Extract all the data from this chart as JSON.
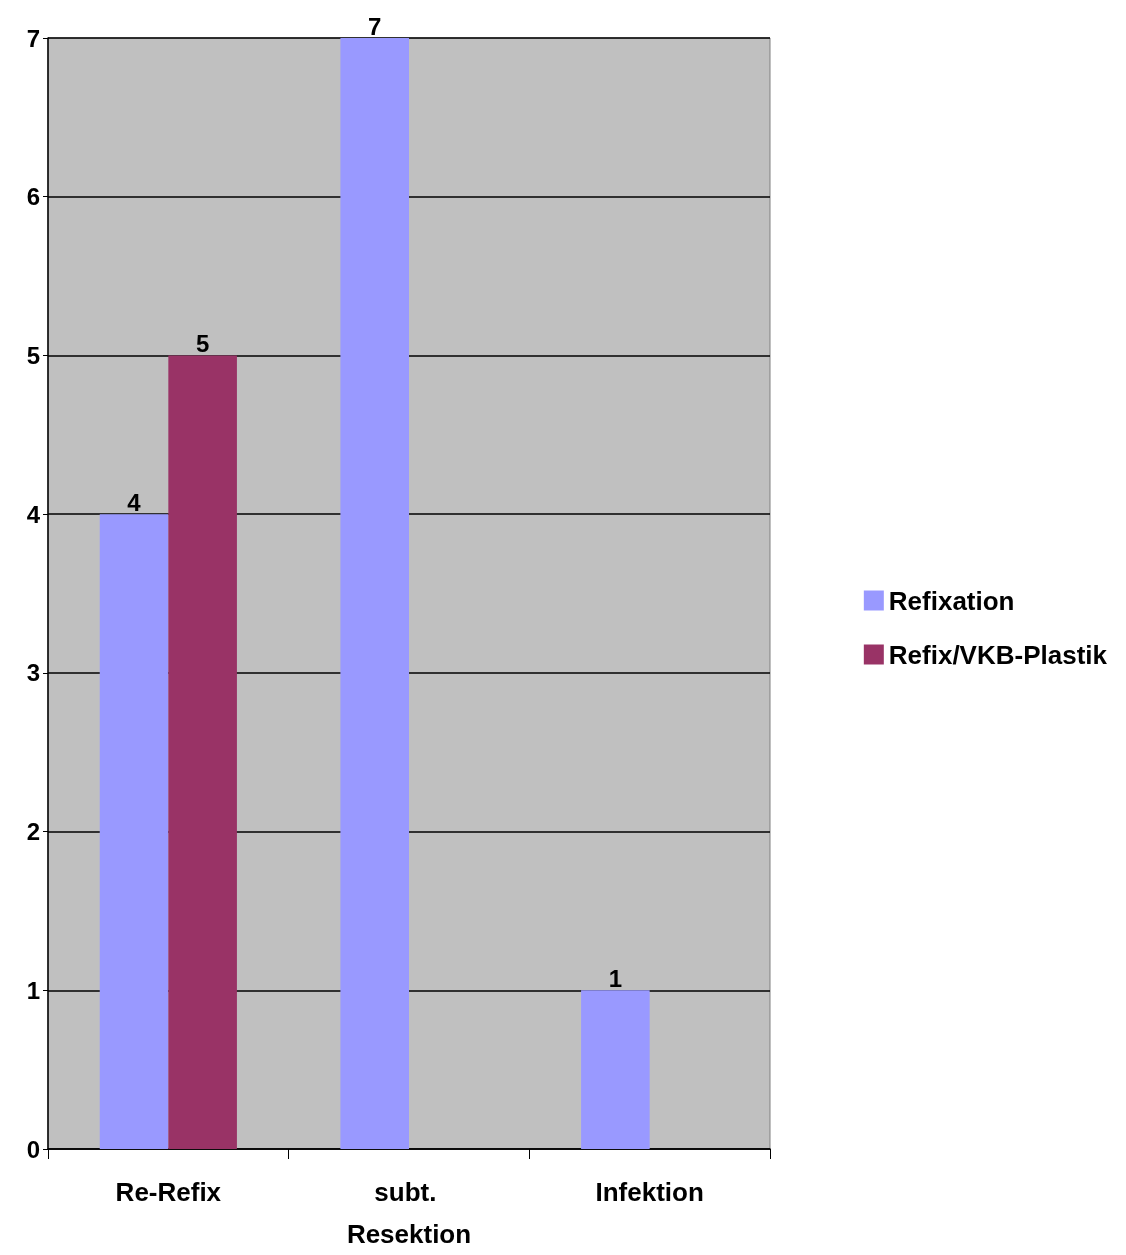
{
  "chart_data": {
    "type": "bar",
    "categories": [
      "Re-Refix",
      "subt. Resektion",
      "Infektion"
    ],
    "series": [
      {
        "name": "Refixation",
        "color": "#9999ff",
        "values": [
          4,
          7,
          1
        ]
      },
      {
        "name": "Refix/VKB-Plastik",
        "color": "#993366",
        "values": [
          5,
          null,
          null
        ]
      }
    ],
    "ylim": [
      0,
      7
    ],
    "yticks": [
      0,
      1,
      2,
      3,
      4,
      5,
      6,
      7
    ],
    "grid": "y",
    "legend": "right",
    "data_labels": true
  }
}
